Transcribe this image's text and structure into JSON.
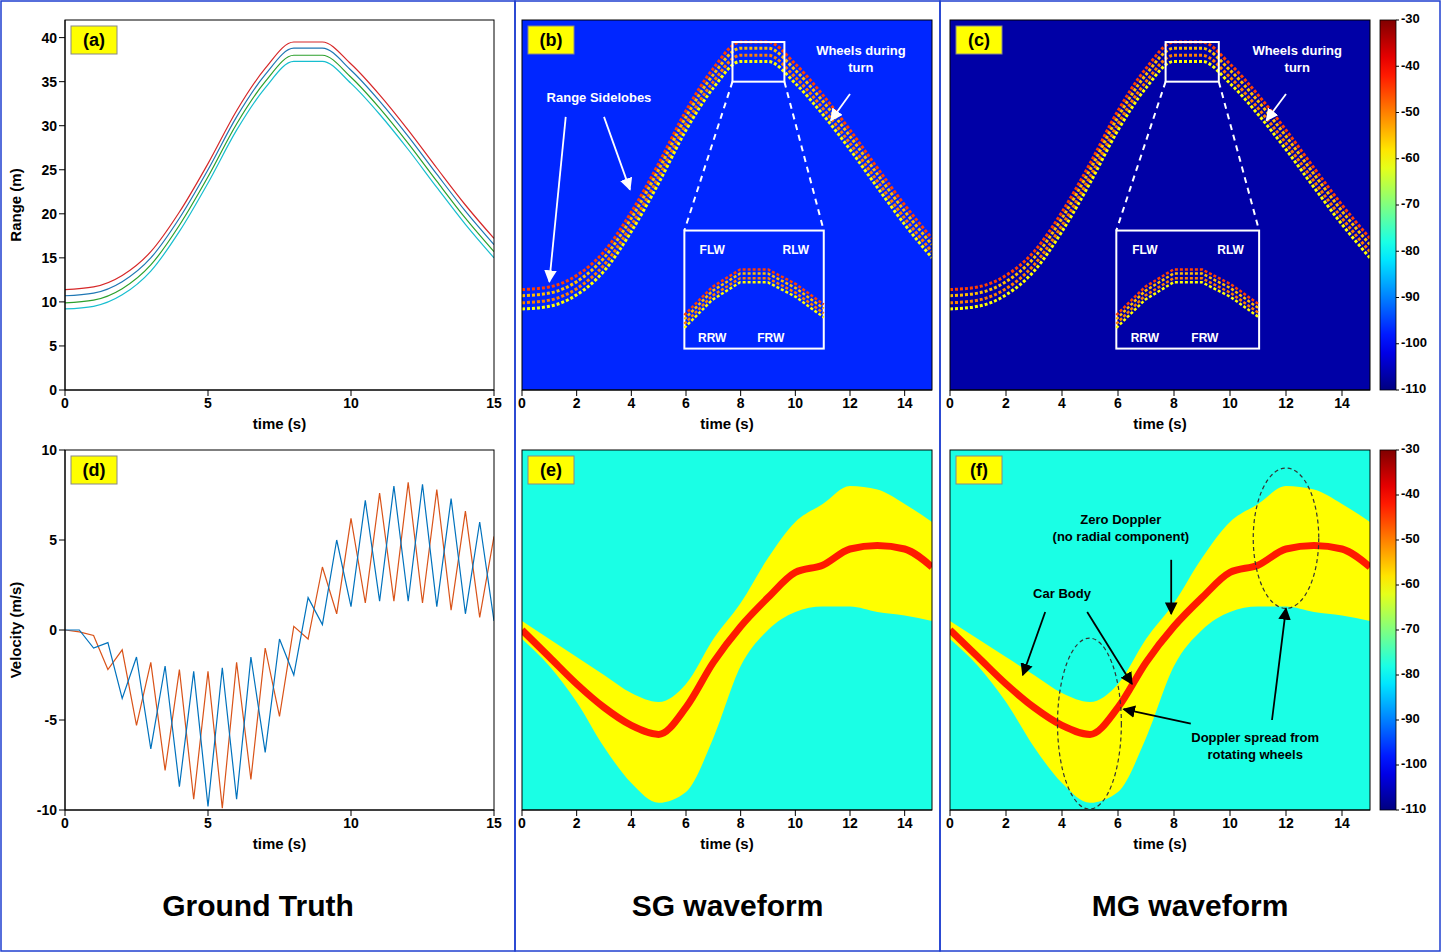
{
  "chart_data": [
    {
      "type": "line",
      "panel": "(a)",
      "xlabel": "time (s)",
      "ylabel": "Range (m)",
      "xlim": [
        0,
        15
      ],
      "xticks": [
        0,
        5,
        10,
        15
      ],
      "ylim": [
        0,
        42
      ],
      "yticks": [
        0,
        5,
        10,
        15,
        20,
        25,
        30,
        35,
        40
      ],
      "x": [
        0,
        1,
        2,
        3,
        4,
        5,
        6,
        7,
        8,
        9,
        10,
        11,
        12,
        13,
        14,
        15
      ],
      "series": [
        {
          "color": "#d62728",
          "values": [
            11.4,
            11.7,
            13,
            15.7,
            20.2,
            25.7,
            31.7,
            36.5,
            39.5,
            39.5,
            37,
            33.5,
            29.5,
            25.2,
            21,
            17.2
          ]
        },
        {
          "color": "#1f77b4",
          "values": [
            10.7,
            11,
            12.3,
            15,
            19.5,
            25,
            31,
            35.8,
            38.8,
            38.8,
            36.3,
            32.8,
            28.8,
            24.5,
            20.3,
            16.5
          ]
        },
        {
          "color": "#2ca02c",
          "values": [
            9.9,
            10.2,
            11.5,
            14.2,
            18.7,
            24.2,
            30.2,
            35,
            38,
            38,
            35.5,
            32,
            28,
            23.7,
            19.5,
            15.7
          ]
        },
        {
          "color": "#17becf",
          "values": [
            9.2,
            9.5,
            10.8,
            13.5,
            18,
            23.5,
            29.5,
            34.3,
            37.3,
            37.3,
            34.8,
            31.3,
            27.3,
            23,
            18.8,
            15
          ]
        }
      ]
    },
    {
      "type": "heatmap",
      "panel": "(b)",
      "xlabel": "time (s)",
      "xlim": [
        0,
        15
      ],
      "xticks": [
        0,
        2,
        4,
        6,
        8,
        10,
        12,
        14
      ],
      "ylim": [
        0,
        42
      ],
      "tick_labels": "x",
      "background": -97,
      "x": [
        0,
        1,
        2,
        3,
        4,
        5,
        6,
        7,
        8,
        9,
        10,
        11,
        12,
        13,
        14,
        15
      ],
      "series": [
        {
          "level": -45,
          "values": [
            11.4,
            11.7,
            13,
            15.7,
            20.2,
            25.7,
            31.7,
            36.5,
            39.5,
            39.5,
            37,
            33.5,
            29.5,
            25.2,
            21,
            17.2
          ]
        },
        {
          "level": -55,
          "values": [
            10.7,
            11,
            12.3,
            15,
            19.5,
            25,
            31,
            35.8,
            38.8,
            38.8,
            36.3,
            32.8,
            28.8,
            24.5,
            20.3,
            16.5
          ]
        },
        {
          "level": -50,
          "values": [
            9.9,
            10.2,
            11.5,
            14.2,
            18.7,
            24.2,
            30.2,
            35,
            38,
            38,
            35.5,
            32,
            28,
            23.7,
            19.5,
            15.7
          ]
        },
        {
          "level": -60,
          "values": [
            9.2,
            9.5,
            10.8,
            13.5,
            18,
            23.5,
            29.5,
            34.3,
            37.3,
            37.3,
            34.8,
            31.3,
            27.3,
            23,
            18.8,
            15
          ]
        }
      ],
      "annotations": [
        "Range Sidelobes",
        [
          "Wheels during",
          "turn"
        ]
      ],
      "inset_labels": [
        "FLW",
        "RLW",
        "RRW",
        "FRW"
      ]
    },
    {
      "type": "heatmap",
      "panel": "(c)",
      "xlabel": "time (s)",
      "xlim": [
        0,
        15
      ],
      "xticks": [
        0,
        2,
        4,
        6,
        8,
        10,
        12,
        14
      ],
      "ylim": [
        0,
        42
      ],
      "tick_labels": "x",
      "background": -107,
      "x": [
        0,
        1,
        2,
        3,
        4,
        5,
        6,
        7,
        8,
        9,
        10,
        11,
        12,
        13,
        14,
        15
      ],
      "series": [
        {
          "level": -45,
          "values": [
            11.4,
            11.7,
            13,
            15.7,
            20.2,
            25.7,
            31.7,
            36.5,
            39.5,
            39.5,
            37,
            33.5,
            29.5,
            25.2,
            21,
            17.2
          ]
        },
        {
          "level": -55,
          "values": [
            10.7,
            11,
            12.3,
            15,
            19.5,
            25,
            31,
            35.8,
            38.8,
            38.8,
            36.3,
            32.8,
            28.8,
            24.5,
            20.3,
            16.5
          ]
        },
        {
          "level": -50,
          "values": [
            9.9,
            10.2,
            11.5,
            14.2,
            18.7,
            24.2,
            30.2,
            35,
            38,
            38,
            35.5,
            32,
            28,
            23.7,
            19.5,
            15.7
          ]
        },
        {
          "level": -60,
          "values": [
            9.2,
            9.5,
            10.8,
            13.5,
            18,
            23.5,
            29.5,
            34.3,
            37.3,
            37.3,
            34.8,
            31.3,
            27.3,
            23,
            18.8,
            15
          ]
        }
      ],
      "annotations": [
        [
          "Wheels during",
          "turn"
        ]
      ],
      "inset_labels": [
        "FLW",
        "RLW",
        "RRW",
        "FRW"
      ],
      "colorbar": {
        "range": [
          -110,
          -30
        ],
        "ticks": [
          -30,
          -40,
          -50,
          -60,
          -70,
          -80,
          -90,
          -100,
          -110
        ]
      }
    },
    {
      "type": "line",
      "panel": "(d)",
      "xlabel": "time (s)",
      "ylabel": "Velocity (m/s)",
      "xlim": [
        0,
        15
      ],
      "xticks": [
        0,
        5,
        10,
        15
      ],
      "ylim": [
        -10,
        10
      ],
      "yticks": [
        -10,
        -5,
        0,
        5,
        10
      ],
      "x": [
        0,
        0.5,
        1,
        1.5,
        2,
        2.5,
        3,
        3.5,
        4,
        4.5,
        5,
        5.5,
        6,
        6.5,
        7,
        7.5,
        8,
        8.5,
        9,
        9.5,
        10,
        10.5,
        11,
        11.5,
        12,
        12.5,
        13,
        13.5,
        14,
        14.5,
        15
      ],
      "series": [
        {
          "color": "#d95319",
          "values": [
            0,
            -0.1,
            -0.3,
            -2.2,
            -1.1,
            -5.3,
            -1.8,
            -7.8,
            -2.2,
            -9.4,
            -2.3,
            -9.9,
            -1.8,
            -8.3,
            -1.0,
            -4.8,
            0.2,
            -0.5,
            3.5,
            0.9,
            6.2,
            1.5,
            7.6,
            1.6,
            8.2,
            1.5,
            7.8,
            1.1,
            6.6,
            0.7,
            5.2
          ]
        },
        {
          "color": "#0072bd",
          "values": [
            0,
            0,
            -1,
            -0.7,
            -3.8,
            -1.5,
            -6.6,
            -2.0,
            -8.7,
            -2.3,
            -9.8,
            -2.1,
            -9.4,
            -1.5,
            -6.8,
            -0.5,
            -2.5,
            1.8,
            0.3,
            5.0,
            1.3,
            7.2,
            1.6,
            8.0,
            1.6,
            8.1,
            1.3,
            7.3,
            0.9,
            6.0,
            0.5
          ]
        }
      ]
    },
    {
      "type": "heatmap",
      "panel": "(e)",
      "xlabel": "time (s)",
      "xlim": [
        0,
        15
      ],
      "xticks": [
        0,
        2,
        4,
        6,
        8,
        10,
        12,
        14
      ],
      "ylim": [
        -10,
        10
      ],
      "tick_labels": "x",
      "background": -78,
      "x": [
        0,
        1,
        2,
        3,
        4,
        5,
        6,
        7,
        8,
        9,
        10,
        11,
        12,
        13,
        14,
        15
      ],
      "series": [
        {
          "type": "band",
          "level": -60,
          "values": [
            [
              -0.5,
              0.5
            ],
            [
              -2,
              -0.5
            ],
            [
              -4,
              -1.5
            ],
            [
              -6.5,
              -2.5
            ],
            [
              -8.5,
              -3.5
            ],
            [
              -9.6,
              -4
            ],
            [
              -9,
              -3
            ],
            [
              -6,
              -0.5
            ],
            [
              -2,
              1.5
            ],
            [
              0,
              4
            ],
            [
              1,
              6
            ],
            [
              1.3,
              7
            ],
            [
              1.3,
              8
            ],
            [
              1,
              7.8
            ],
            [
              0.8,
              7
            ],
            [
              0.5,
              6
            ]
          ]
        },
        {
          "type": "line",
          "level": -42,
          "values": [
            0,
            -1.5,
            -3,
            -4.3,
            -5.3,
            -5.8,
            -4.3,
            -1.8,
            0.2,
            1.8,
            3.2,
            3.6,
            4.5,
            4.7,
            4.5,
            3.5
          ]
        }
      ]
    },
    {
      "type": "heatmap",
      "panel": "(f)",
      "xlabel": "time (s)",
      "xlim": [
        0,
        15
      ],
      "xticks": [
        0,
        2,
        4,
        6,
        8,
        10,
        12,
        14
      ],
      "ylim": [
        -10,
        10
      ],
      "tick_labels": "x",
      "background": -78,
      "x": [
        0,
        1,
        2,
        3,
        4,
        5,
        6,
        7,
        8,
        9,
        10,
        11,
        12,
        13,
        14,
        15
      ],
      "series": [
        {
          "type": "band",
          "level": -60,
          "values": [
            [
              -0.5,
              0.5
            ],
            [
              -2,
              -0.5
            ],
            [
              -4,
              -1.5
            ],
            [
              -6.5,
              -2.5
            ],
            [
              -8.5,
              -3.5
            ],
            [
              -9.6,
              -4
            ],
            [
              -9,
              -3
            ],
            [
              -6,
              -0.5
            ],
            [
              -2,
              1.5
            ],
            [
              0,
              4
            ],
            [
              1,
              6
            ],
            [
              1.3,
              7
            ],
            [
              1.3,
              8
            ],
            [
              1,
              7.8
            ],
            [
              0.8,
              7
            ],
            [
              0.5,
              6
            ]
          ]
        },
        {
          "type": "line",
          "level": -42,
          "values": [
            0,
            -1.5,
            -3,
            -4.3,
            -5.3,
            -5.8,
            -4.3,
            -1.8,
            0.2,
            1.8,
            3.2,
            3.6,
            4.5,
            4.7,
            4.5,
            3.5
          ]
        }
      ],
      "annotations": [
        "Car Body",
        [
          "Zero Doppler",
          "(no radial component)"
        ],
        [
          "Doppler spread from",
          "rotating wheels"
        ]
      ],
      "colorbar": {
        "range": [
          -110,
          -30
        ],
        "ticks": [
          -30,
          -40,
          -50,
          -60,
          -70,
          -80,
          -90,
          -100,
          -110
        ]
      }
    }
  ],
  "column_labels": [
    "Ground Truth",
    "SG waveform",
    "MG waveform"
  ]
}
